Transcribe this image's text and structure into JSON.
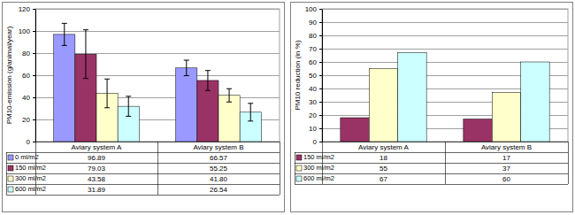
{
  "chart_data": [
    {
      "type": "bar",
      "y_label": "PM10-emission (g/animal/year)",
      "categories": [
        "Aviary system A",
        "Aviary system B"
      ],
      "series": [
        {
          "name": "0 ml/m2",
          "color": "#9999ff",
          "values": [
            96.89,
            66.57
          ],
          "errors": [
            10,
            7
          ]
        },
        {
          "name": "150 ml/m2",
          "color": "#993366",
          "values": [
            79.03,
            55.25
          ],
          "errors": [
            22,
            9
          ]
        },
        {
          "name": "300 ml/m2",
          "color": "#ffffcc",
          "values": [
            43.58,
            41.8
          ],
          "value_labels": [
            "43.58",
            "41.80"
          ],
          "errors": [
            13,
            6
          ]
        },
        {
          "name": "600 ml/m2",
          "color": "#ccffff",
          "values": [
            31.89,
            26.54
          ],
          "errors": [
            9,
            8
          ]
        }
      ],
      "ylim": [
        0,
        120
      ],
      "yticks": [
        0,
        20,
        40,
        60,
        80,
        100,
        120
      ],
      "grid": true
    },
    {
      "type": "bar",
      "y_label": "PM10 reduction (in %)",
      "categories": [
        "Aviary system A",
        "Aviary system B"
      ],
      "series": [
        {
          "name": "150 ml/m2",
          "color": "#993366",
          "values": [
            18,
            17
          ]
        },
        {
          "name": "300 ml/m2",
          "color": "#ffffcc",
          "values": [
            55,
            37
          ]
        },
        {
          "name": "600 ml/m2",
          "color": "#ccffff",
          "values": [
            67,
            60
          ]
        }
      ],
      "ylim": [
        0,
        100
      ],
      "yticks": [
        0,
        10,
        20,
        30,
        40,
        50,
        60,
        70,
        80,
        90,
        100
      ],
      "grid": true
    }
  ]
}
